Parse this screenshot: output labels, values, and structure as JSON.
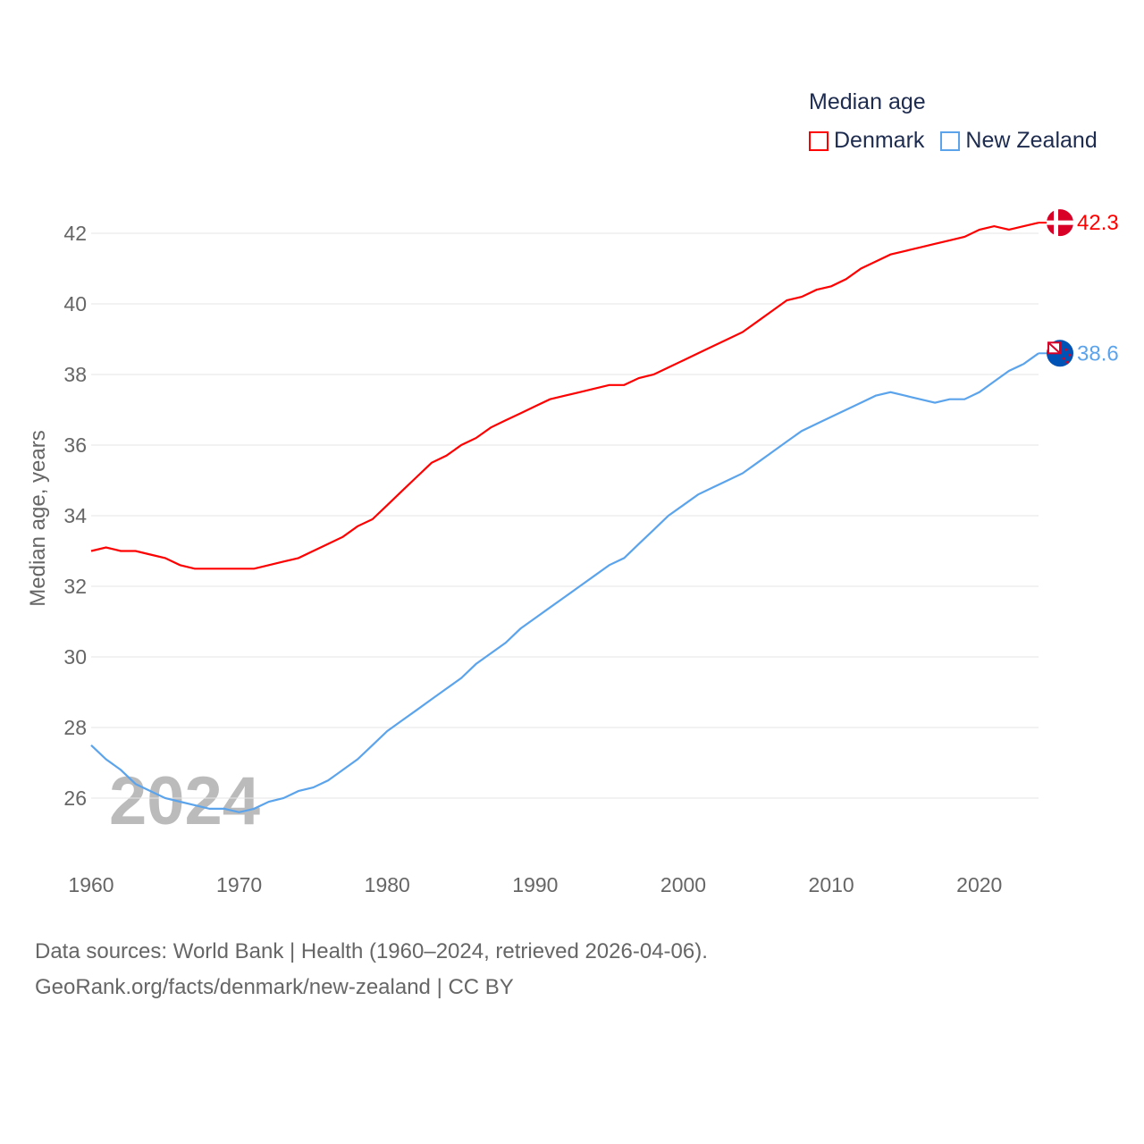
{
  "chart_data": {
    "type": "line",
    "title": "Median age",
    "ylabel": "Median age, years",
    "xlabel": "",
    "xlim": [
      1960,
      2024
    ],
    "ylim": [
      25,
      43
    ],
    "y_ticks": [
      26,
      28,
      30,
      32,
      34,
      36,
      38,
      40,
      42
    ],
    "x_ticks": [
      1960,
      1970,
      1980,
      1990,
      2000,
      2010,
      2020
    ],
    "grid": true,
    "legend_position": "top-right",
    "year_watermark": "2024",
    "x": [
      1960,
      1961,
      1962,
      1963,
      1964,
      1965,
      1966,
      1967,
      1968,
      1969,
      1970,
      1971,
      1972,
      1973,
      1974,
      1975,
      1976,
      1977,
      1978,
      1979,
      1980,
      1981,
      1982,
      1983,
      1984,
      1985,
      1986,
      1987,
      1988,
      1989,
      1990,
      1991,
      1992,
      1993,
      1994,
      1995,
      1996,
      1997,
      1998,
      1999,
      2000,
      2001,
      2002,
      2003,
      2004,
      2005,
      2006,
      2007,
      2008,
      2009,
      2010,
      2011,
      2012,
      2013,
      2014,
      2015,
      2016,
      2017,
      2018,
      2019,
      2020,
      2021,
      2022,
      2023,
      2024
    ],
    "series": [
      {
        "name": "Denmark",
        "color": "#ff0000",
        "end_label": "42.3",
        "values": [
          33.0,
          33.1,
          33.0,
          33.0,
          32.9,
          32.8,
          32.6,
          32.5,
          32.5,
          32.5,
          32.5,
          32.5,
          32.6,
          32.7,
          32.8,
          33.0,
          33.2,
          33.4,
          33.7,
          33.9,
          34.3,
          34.7,
          35.1,
          35.5,
          35.7,
          36.0,
          36.2,
          36.5,
          36.7,
          36.9,
          37.1,
          37.3,
          37.4,
          37.5,
          37.6,
          37.7,
          37.7,
          37.9,
          38.0,
          38.2,
          38.4,
          38.6,
          38.8,
          39.0,
          39.2,
          39.5,
          39.8,
          40.1,
          40.2,
          40.4,
          40.5,
          40.7,
          41.0,
          41.2,
          41.4,
          41.5,
          41.6,
          41.7,
          41.8,
          41.9,
          42.1,
          42.2,
          42.1,
          42.2,
          42.3
        ]
      },
      {
        "name": "New Zealand",
        "color": "#5ba4ec",
        "end_label": "38.6",
        "values": [
          27.5,
          27.1,
          26.8,
          26.4,
          26.2,
          26.0,
          25.9,
          25.8,
          25.7,
          25.7,
          25.6,
          25.7,
          25.9,
          26.0,
          26.2,
          26.3,
          26.5,
          26.8,
          27.1,
          27.5,
          27.9,
          28.2,
          28.5,
          28.8,
          29.1,
          29.4,
          29.8,
          30.1,
          30.4,
          30.8,
          31.1,
          31.4,
          31.7,
          32.0,
          32.3,
          32.6,
          32.8,
          33.2,
          33.6,
          34.0,
          34.3,
          34.6,
          34.8,
          35.0,
          35.2,
          35.5,
          35.8,
          36.1,
          36.4,
          36.6,
          36.8,
          37.0,
          37.2,
          37.4,
          37.5,
          37.4,
          37.3,
          37.2,
          37.3,
          37.3,
          37.5,
          37.8,
          38.1,
          38.3,
          38.6
        ]
      }
    ]
  },
  "source": {
    "line1": "Data sources: World Bank | Health (1960–2024, retrieved 2026-04-06).",
    "line2": "GeoRank.org/facts/denmark/new-zealand | CC BY"
  }
}
